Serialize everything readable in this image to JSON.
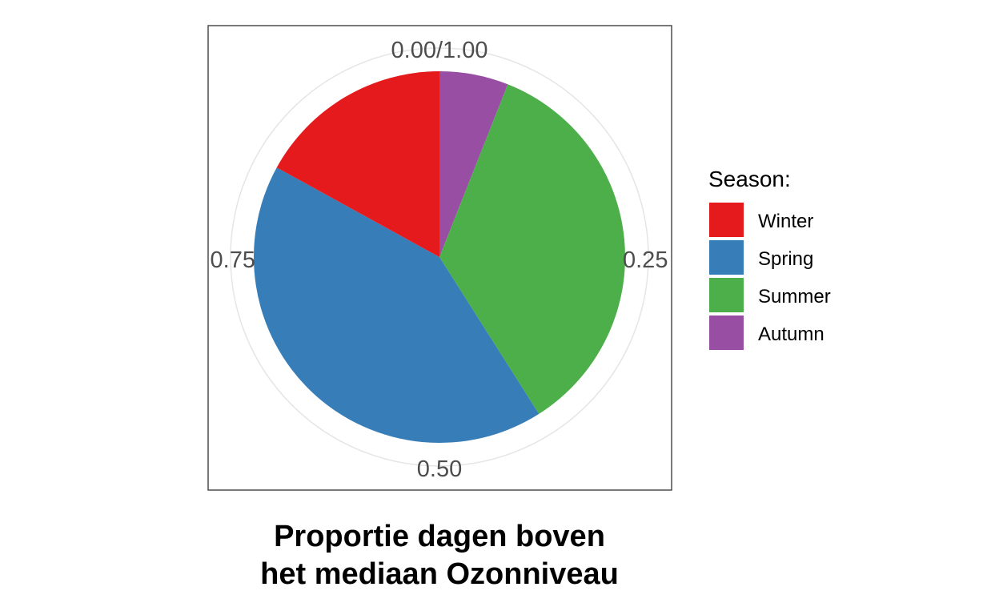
{
  "chart_data": {
    "type": "pie",
    "title": "",
    "caption_lines": [
      "Proportie dagen boven",
      "het mediaan Ozonniveau"
    ],
    "legend_title": "Season:",
    "legend_position": "right",
    "categories": [
      "Winter",
      "Spring",
      "Summer",
      "Autumn"
    ],
    "values": [
      0.17,
      0.42,
      0.35,
      0.06
    ],
    "colors": [
      "#E41A1C",
      "#377EB8",
      "#4DAF4A",
      "#984EA3"
    ],
    "slice_order_clockwise_from_top": [
      "Autumn",
      "Summer",
      "Spring",
      "Winter"
    ],
    "axis_ticks": [
      "0.00/1.00",
      "0.25",
      "0.50",
      "0.75"
    ],
    "grid": true
  }
}
